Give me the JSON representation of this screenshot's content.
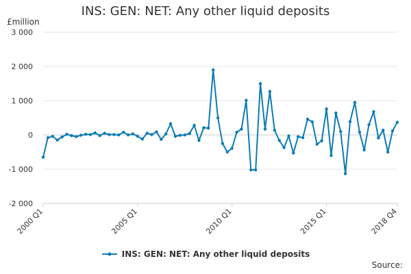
{
  "title": "INS: GEN: NET: Any other liquid deposits",
  "unit": "£million",
  "source_label": "Source:",
  "colors": {
    "series": "#0b7bb5",
    "grid": "#e6e6e6",
    "axis": "#cccccc",
    "text": "#333333"
  },
  "chart_data": {
    "type": "line",
    "title": "INS: GEN: NET: Any other liquid deposits",
    "ylabel": "£million",
    "ylim": [
      -2000,
      3000
    ],
    "yticks": [
      -2000,
      -1000,
      0,
      1000,
      2000,
      3000
    ],
    "ytick_labels": [
      "-2 000",
      "-1 000",
      "0",
      "1 000",
      "2 000",
      "3 000"
    ],
    "xtick_labels": [
      {
        "index": 0,
        "label": "2000 Q1"
      },
      {
        "index": 20,
        "label": "2005 Q1"
      },
      {
        "index": 40,
        "label": "2010 Q1"
      },
      {
        "index": 60,
        "label": "2015 Q1"
      },
      {
        "index": 75,
        "label": "2018 Q4"
      }
    ],
    "x_start": "2000 Q1",
    "x_end": "2018 Q4",
    "grid": true,
    "legend": "bottom",
    "series": [
      {
        "name": "INS: GEN: NET: Any other liquid deposits",
        "values": [
          -650,
          -80,
          -40,
          -150,
          -60,
          20,
          -20,
          -50,
          -10,
          20,
          10,
          60,
          -20,
          50,
          10,
          10,
          0,
          80,
          0,
          30,
          -40,
          -120,
          50,
          10,
          90,
          -130,
          30,
          330,
          -40,
          -10,
          0,
          40,
          280,
          -160,
          210,
          200,
          1900,
          500,
          -250,
          -500,
          -390,
          80,
          170,
          1010,
          -1020,
          -1020,
          1500,
          170,
          1270,
          140,
          -160,
          -370,
          -30,
          -530,
          -50,
          -80,
          460,
          380,
          -270,
          -170,
          760,
          -600,
          640,
          100,
          -1130,
          390,
          950,
          80,
          -440,
          300,
          680,
          -90,
          140,
          -500,
          120,
          370
        ]
      }
    ]
  }
}
